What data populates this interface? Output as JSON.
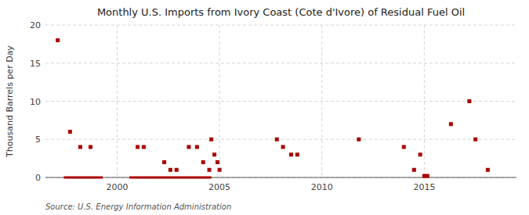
{
  "chart_data": {
    "type": "scatter",
    "title": "Monthly U.S. Imports from Ivory Coast (Cote d'Ivore) of Residual Fuel Oil",
    "y_label": "Thousand Barrels per Day",
    "annotations": [
      "Source: U.S. Energy Information Administration"
    ],
    "xlim": [
      1996.5,
      2019.5
    ],
    "xticks": [
      2000,
      2005,
      2010,
      2015
    ],
    "ylim": [
      0,
      20
    ],
    "yticks": [
      0,
      5,
      10,
      15,
      20
    ],
    "grid": true,
    "series": [
      {
        "type": "scatter",
        "color": "#aa0000",
        "marker": "square",
        "x": [
          1997.1,
          1997.7,
          1998.2,
          1998.7,
          2001.0,
          2001.3,
          2002.3,
          2002.6,
          2002.9,
          2003.5,
          2003.9,
          2004.2,
          2004.5,
          2004.6,
          2004.75,
          2004.9,
          2005.0,
          2007.8,
          2008.1,
          2008.5,
          2008.8,
          2011.8,
          2014.0,
          2014.5,
          2014.8,
          2015.0,
          2015.15,
          2016.3,
          2017.2,
          2017.5,
          2018.1
        ],
        "values": [
          18,
          6,
          4,
          4,
          4,
          4,
          2,
          1,
          1,
          4,
          4,
          2,
          1,
          5,
          3,
          2,
          1,
          5,
          4,
          3,
          3,
          5,
          4,
          1,
          3,
          0.2,
          0.2,
          7,
          10,
          5,
          1
        ]
      },
      {
        "type": "line",
        "color": "#aa0000",
        "line_style": "solid",
        "x": [
          1997.4,
          1999.3,
          null,
          2000.6,
          2004.6
        ],
        "values": [
          0,
          0,
          null,
          0,
          0
        ]
      }
    ]
  }
}
